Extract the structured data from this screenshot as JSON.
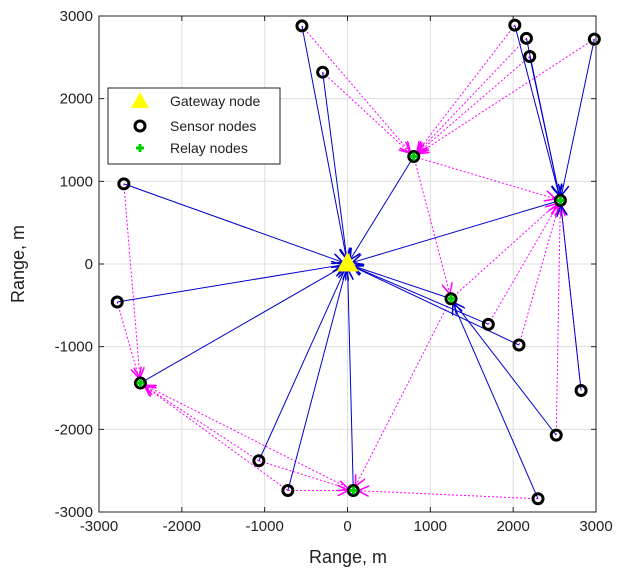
{
  "chart_data": {
    "type": "scatter",
    "title": "",
    "xlabel": "Range, m",
    "ylabel": "Range, m",
    "xlim": [
      -3000,
      3000
    ],
    "ylim": [
      -3000,
      3000
    ],
    "xticks": [
      -3000,
      -2000,
      -1000,
      0,
      1000,
      2000,
      3000
    ],
    "yticks": [
      -3000,
      -2000,
      -1000,
      0,
      1000,
      2000,
      3000
    ],
    "xtick_labels": [
      "-3000",
      "-2000",
      "-1000",
      "0",
      "1000",
      "2000",
      "3000"
    ],
    "ytick_labels": [
      "-3000",
      "-2000",
      "-1000",
      "0",
      "1000",
      "2000",
      "3000"
    ],
    "grid": true,
    "legend": {
      "placement": "top-left",
      "entries": [
        "Gateway node",
        "Sensor nodes",
        "Relay nodes"
      ]
    },
    "colors": {
      "gateway": "#ffff00",
      "sensor": "#000000",
      "relay": "#00cc00",
      "direct_link": "#0000cc",
      "relay_link": "#ff00ff"
    },
    "gateway": {
      "x": 0,
      "y": 0
    },
    "relay_nodes": [
      {
        "x": 800,
        "y": 1300
      },
      {
        "x": 2570,
        "y": 770
      },
      {
        "x": 1250,
        "y": -420
      },
      {
        "x": -2500,
        "y": -1440
      },
      {
        "x": 70,
        "y": -2740
      }
    ],
    "sensor_nodes": [
      {
        "x": -550,
        "y": 2880
      },
      {
        "x": -300,
        "y": 2320
      },
      {
        "x": 2020,
        "y": 2890
      },
      {
        "x": 2160,
        "y": 2730
      },
      {
        "x": 2200,
        "y": 2510
      },
      {
        "x": 2980,
        "y": 2720
      },
      {
        "x": -2700,
        "y": 970
      },
      {
        "x": -2780,
        "y": -460
      },
      {
        "x": 1700,
        "y": -730
      },
      {
        "x": 2070,
        "y": -980
      },
      {
        "x": 2820,
        "y": -1530
      },
      {
        "x": 2520,
        "y": -2070
      },
      {
        "x": -1070,
        "y": -2380
      },
      {
        "x": -720,
        "y": -2740
      },
      {
        "x": 2300,
        "y": -2840
      }
    ],
    "direct_links": [
      {
        "from": [
          -550,
          2880
        ],
        "to": [
          0,
          0
        ]
      },
      {
        "from": [
          -300,
          2320
        ],
        "to": [
          0,
          0
        ]
      },
      {
        "from": [
          -2700,
          970
        ],
        "to": [
          0,
          0
        ]
      },
      {
        "from": [
          -2780,
          -460
        ],
        "to": [
          0,
          0
        ]
      },
      {
        "from": [
          -2500,
          -1440
        ],
        "to": [
          0,
          0
        ]
      },
      {
        "from": [
          -1070,
          -2380
        ],
        "to": [
          0,
          0
        ]
      },
      {
        "from": [
          -720,
          -2740
        ],
        "to": [
          0,
          0
        ]
      },
      {
        "from": [
          70,
          -2740
        ],
        "to": [
          0,
          0
        ]
      },
      {
        "from": [
          800,
          1300
        ],
        "to": [
          0,
          0
        ]
      },
      {
        "from": [
          2570,
          770
        ],
        "to": [
          0,
          0
        ]
      },
      {
        "from": [
          1250,
          -420
        ],
        "to": [
          0,
          0
        ]
      },
      {
        "from": [
          1700,
          -730
        ],
        "to": [
          0,
          0
        ]
      },
      {
        "from": [
          2070,
          -980
        ],
        "to": [
          0,
          0
        ]
      },
      {
        "from": [
          2020,
          2890
        ],
        "to": [
          2570,
          770
        ]
      },
      {
        "from": [
          2160,
          2730
        ],
        "to": [
          2570,
          770
        ]
      },
      {
        "from": [
          2200,
          2510
        ],
        "to": [
          2570,
          770
        ]
      },
      {
        "from": [
          2980,
          2720
        ],
        "to": [
          2570,
          770
        ]
      },
      {
        "from": [
          2820,
          -1530
        ],
        "to": [
          2570,
          770
        ]
      },
      {
        "from": [
          2520,
          -2070
        ],
        "to": [
          1250,
          -420
        ]
      },
      {
        "from": [
          2300,
          -2840
        ],
        "to": [
          1250,
          -420
        ]
      }
    ],
    "relay_links": [
      {
        "from": [
          -550,
          2880
        ],
        "to": [
          800,
          1300
        ]
      },
      {
        "from": [
          -300,
          2320
        ],
        "to": [
          800,
          1300
        ]
      },
      {
        "from": [
          2020,
          2890
        ],
        "to": [
          800,
          1300
        ]
      },
      {
        "from": [
          2160,
          2730
        ],
        "to": [
          800,
          1300
        ]
      },
      {
        "from": [
          2200,
          2510
        ],
        "to": [
          800,
          1300
        ]
      },
      {
        "from": [
          2980,
          2720
        ],
        "to": [
          800,
          1300
        ]
      },
      {
        "from": [
          800,
          1300
        ],
        "to": [
          2570,
          770
        ]
      },
      {
        "from": [
          800,
          1300
        ],
        "to": [
          1250,
          -420
        ]
      },
      {
        "from": [
          1250,
          -420
        ],
        "to": [
          2570,
          770
        ]
      },
      {
        "from": [
          1700,
          -730
        ],
        "to": [
          2570,
          770
        ]
      },
      {
        "from": [
          2070,
          -980
        ],
        "to": [
          2570,
          770
        ]
      },
      {
        "from": [
          2820,
          -1530
        ],
        "to": [
          2570,
          770
        ]
      },
      {
        "from": [
          2520,
          -2070
        ],
        "to": [
          2570,
          770
        ]
      },
      {
        "from": [
          -2700,
          970
        ],
        "to": [
          -2500,
          -1440
        ]
      },
      {
        "from": [
          -2780,
          -460
        ],
        "to": [
          -2500,
          -1440
        ]
      },
      {
        "from": [
          -1070,
          -2380
        ],
        "to": [
          -2500,
          -1440
        ]
      },
      {
        "from": [
          -720,
          -2740
        ],
        "to": [
          -2500,
          -1440
        ]
      },
      {
        "from": [
          70,
          -2740
        ],
        "to": [
          -2500,
          -1440
        ]
      },
      {
        "from": [
          -1070,
          -2380
        ],
        "to": [
          70,
          -2740
        ]
      },
      {
        "from": [
          -720,
          -2740
        ],
        "to": [
          70,
          -2740
        ]
      },
      {
        "from": [
          2300,
          -2840
        ],
        "to": [
          70,
          -2740
        ]
      },
      {
        "from": [
          1250,
          -420
        ],
        "to": [
          70,
          -2740
        ]
      }
    ]
  }
}
